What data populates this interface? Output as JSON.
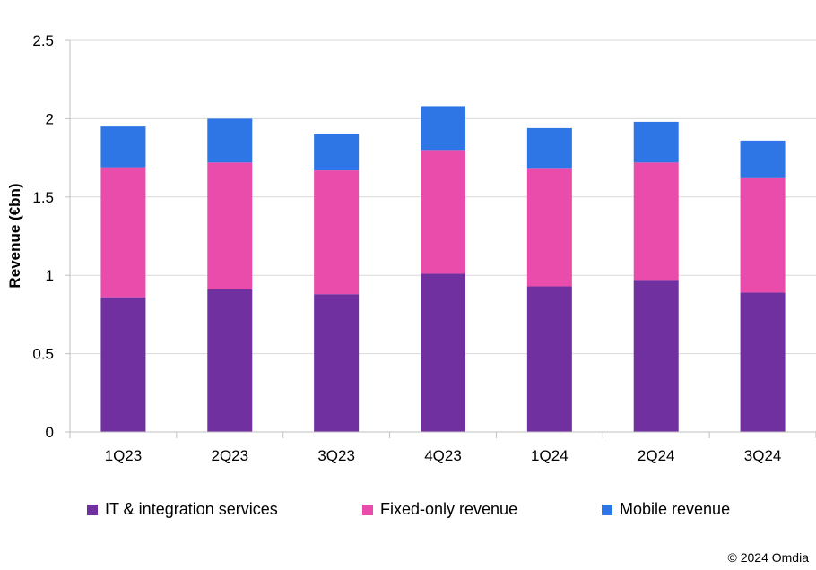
{
  "chart_data": {
    "type": "bar",
    "stacked": true,
    "categories": [
      "1Q23",
      "2Q23",
      "3Q23",
      "4Q23",
      "1Q24",
      "2Q24",
      "3Q24"
    ],
    "series": [
      {
        "name": "IT & integration services",
        "color": "#7030A0",
        "values": [
          0.86,
          0.91,
          0.88,
          1.01,
          0.93,
          0.97,
          0.89
        ]
      },
      {
        "name": "Fixed-only revenue",
        "color": "#EA4CAC",
        "values": [
          0.83,
          0.81,
          0.79,
          0.79,
          0.75,
          0.75,
          0.73
        ]
      },
      {
        "name": "Mobile revenue",
        "color": "#2E75E6",
        "values": [
          0.26,
          0.28,
          0.23,
          0.28,
          0.26,
          0.26,
          0.24
        ]
      }
    ],
    "ylabel": "Revenue (€bn)",
    "ylim": [
      0,
      2.5
    ],
    "yticks": [
      "0",
      "0.5",
      "1",
      "1.5",
      "2",
      "2.5"
    ],
    "grid": true,
    "legend_position": "bottom"
  },
  "footer": {
    "copyright": "© 2024 Omdia"
  }
}
